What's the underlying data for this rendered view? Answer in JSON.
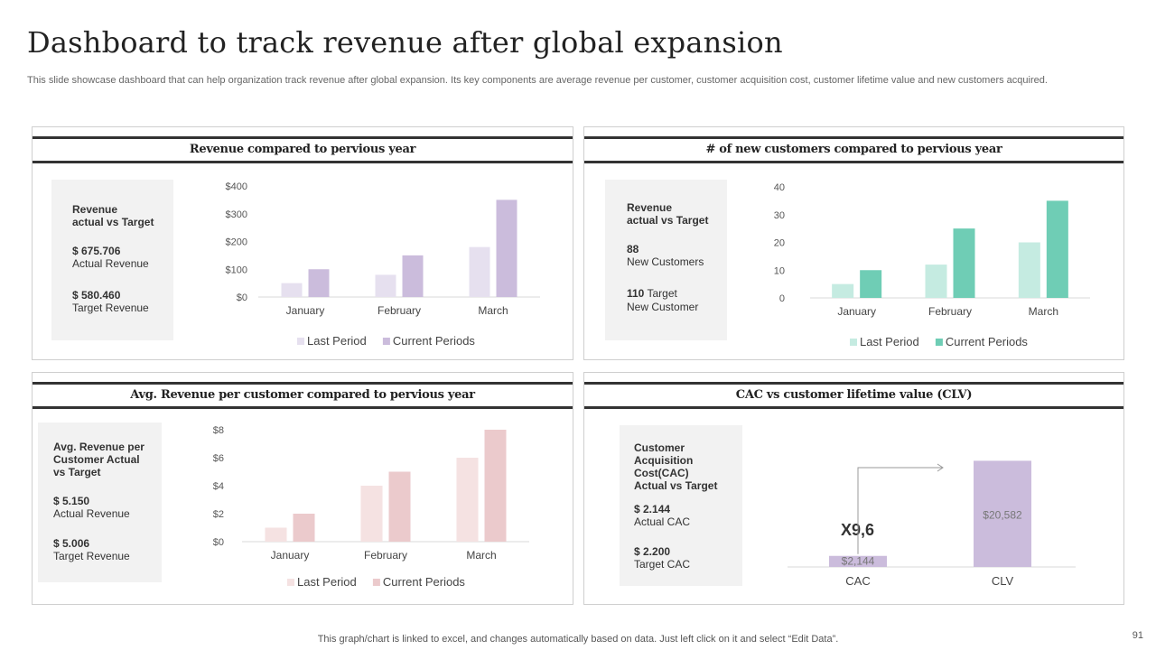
{
  "slide": {
    "title": "Dashboard to track revenue after global expansion",
    "subtitle": "This slide showcase dashboard that can help organization track revenue after global expansion. Its key components are average revenue per customer, customer acquisition cost, customer lifetime value and new customers acquired.",
    "footer": "This graph/chart is linked to excel, and changes automatically based on data. Just left click on it and select “Edit Data”.",
    "page_number": "91"
  },
  "panels": {
    "revenue": {
      "title": "Revenue compared to pervious year",
      "kpi": {
        "heading": "Revenue\nactual vs Target",
        "value1": "$ 675.706",
        "label1": "Actual Revenue",
        "value2": "$ 580.460",
        "label2": "Target Revenue"
      }
    },
    "customers": {
      "title": "# of new customers compared to pervious year",
      "kpi": {
        "heading": "Revenue\nactual vs Target",
        "value1": "88",
        "label1": "New Customers",
        "value2": "110",
        "label2": " Target",
        "label3": "New Customer"
      }
    },
    "avg_revenue": {
      "title": "Avg. Revenue per customer compared to pervious year",
      "kpi": {
        "heading": "Avg. Revenue per\nCustomer Actual\nvs Target",
        "value1": "$ 5.150",
        "label1": "Actual Revenue",
        "value2": "$ 5.006",
        "label2": "Target Revenue"
      }
    },
    "cac_clv": {
      "title": "CAC vs customer lifetime value (CLV)",
      "kpi": {
        "heading": "Customer\nAcquisition\nCost(CAC)\nActual vs Target",
        "value1": "$ 2.144",
        "label1": "Actual CAC",
        "value2": "$ 2.200",
        "label2": "Target CAC"
      },
      "multiplier": "X9,6"
    }
  },
  "chart_data": [
    {
      "type": "bar",
      "title": "Revenue compared to pervious year",
      "categories": [
        "January",
        "February",
        "March"
      ],
      "series": [
        {
          "name": "Last Period",
          "values": [
            50,
            80,
            180
          ],
          "color": "#e6e0ef"
        },
        {
          "name": "Current Periods",
          "values": [
            100,
            150,
            350
          ],
          "color": "#cbbcdc"
        }
      ],
      "ylim": [
        0,
        400
      ],
      "yticks": [
        0,
        100,
        200,
        300,
        400
      ],
      "ytick_labels": [
        "$0",
        "$100",
        "$200",
        "$300",
        "$400"
      ]
    },
    {
      "type": "bar",
      "title": "# of new customers compared to pervious year",
      "categories": [
        "January",
        "February",
        "March"
      ],
      "series": [
        {
          "name": "Last Period",
          "values": [
            5,
            12,
            20
          ],
          "color": "#c5ebe1"
        },
        {
          "name": "Current Periods",
          "values": [
            10,
            25,
            35
          ],
          "color": "#6fcdb5"
        }
      ],
      "ylim": [
        0,
        40
      ],
      "yticks": [
        0,
        10,
        20,
        30,
        40
      ],
      "ytick_labels": [
        "0",
        "10",
        "20",
        "30",
        "40"
      ]
    },
    {
      "type": "bar",
      "title": "Avg. Revenue per customer compared to pervious year",
      "categories": [
        "January",
        "February",
        "March"
      ],
      "series": [
        {
          "name": "Last Period",
          "values": [
            1,
            4,
            6
          ],
          "color": "#f5e2e2"
        },
        {
          "name": "Current Periods",
          "values": [
            2,
            5,
            8
          ],
          "color": "#ebcacc"
        }
      ],
      "ylim": [
        0,
        8
      ],
      "yticks": [
        0,
        2,
        4,
        6,
        8
      ],
      "ytick_labels": [
        "$0",
        "$2",
        "$4",
        "$6",
        "$8"
      ]
    },
    {
      "type": "bar",
      "title": "CAC vs customer lifetime value (CLV)",
      "categories": [
        "CAC",
        "CLV"
      ],
      "values": [
        2144,
        20582
      ],
      "data_labels": [
        "$2,144",
        "$20,582"
      ],
      "color": "#cbbcdc",
      "ylim": [
        0,
        21000
      ]
    }
  ]
}
